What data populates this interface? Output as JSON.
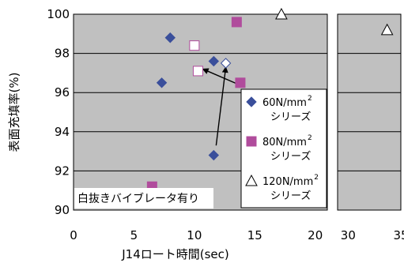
{
  "chart_data": {
    "type": "scatter",
    "xlabel": "J14ロート時間(sec)",
    "ylabel": "表面充填率(%)",
    "ylim": [
      90,
      100
    ],
    "y_ticks": [
      "90",
      "92",
      "94",
      "96",
      "98",
      "100"
    ],
    "x_panels": [
      {
        "xlim": [
          0,
          21
        ],
        "ticks": [
          0,
          5,
          10,
          15,
          20
        ],
        "tick_labels": [
          "0",
          "5",
          "10",
          "15",
          "20"
        ]
      },
      {
        "xlim": [
          29,
          35
        ],
        "ticks": [
          30,
          35
        ],
        "tick_labels": [
          "30",
          "35"
        ]
      }
    ],
    "grid": true,
    "background": "#c0c0c0",
    "series": [
      {
        "name": "60N/mm2シリーズ",
        "legend_main": "60N/mm",
        "legend_sup": "2",
        "legend_sub": "シリーズ",
        "marker": "diamond",
        "color": "#3a4f9b",
        "points": [
          {
            "x": 8.0,
            "y": 98.8,
            "filled": true
          },
          {
            "x": 7.3,
            "y": 96.5,
            "filled": true
          },
          {
            "x": 11.6,
            "y": 97.6,
            "filled": true
          },
          {
            "x": 11.6,
            "y": 92.8,
            "filled": true
          },
          {
            "x": 12.6,
            "y": 97.5,
            "filled": false
          }
        ]
      },
      {
        "name": "80N/mm2シリーズ",
        "legend_main": "80N/mm",
        "legend_sup": "2",
        "legend_sub": "シリーズ",
        "marker": "square",
        "color": "#b04c9c",
        "points": [
          {
            "x": 13.5,
            "y": 99.6,
            "filled": true
          },
          {
            "x": 13.8,
            "y": 96.5,
            "filled": true
          },
          {
            "x": 6.5,
            "y": 91.2,
            "filled": true
          },
          {
            "x": 10.0,
            "y": 98.4,
            "filled": false
          },
          {
            "x": 10.3,
            "y": 97.1,
            "filled": false
          }
        ]
      },
      {
        "name": "120N/mm2シリーズ",
        "legend_main": "120N/mm",
        "legend_sup": "2",
        "legend_sub": "シリーズ",
        "marker": "triangle",
        "color": "#ffffff",
        "points": [
          {
            "x": 17.2,
            "y": 100.0,
            "filled": false
          },
          {
            "x": 33.7,
            "y": 99.2,
            "filled": false
          }
        ]
      }
    ],
    "arrows": [
      {
        "from": [
          13.7,
          96.4
        ],
        "to": [
          10.7,
          97.2
        ]
      },
      {
        "from": [
          11.8,
          93.3
        ],
        "to": [
          12.6,
          97.3
        ]
      }
    ],
    "annotation": "白抜きバイブレータ有り",
    "legend_placement": "right"
  }
}
